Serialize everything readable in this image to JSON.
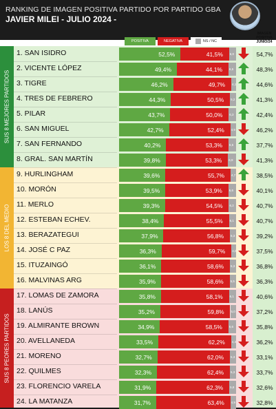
{
  "header": {
    "title": "RANKING DE IMAGEN POSITIVA PARTIDO POR PARTIDO GBA",
    "subtitle": "JAVIER MILEI - JULIO 2024 -"
  },
  "legend": {
    "positive": "POSITIVA",
    "negative": "NEGATIVA",
    "ns": "NS / NC"
  },
  "prev_column_label": "IMAGEN POSITIVA JUNIO/24",
  "groups": [
    {
      "label": "SUS 8 MEJORES PARTIDOS",
      "color": "#2c8f3c"
    },
    {
      "label": "LOS 8 DEL MEDIO",
      "color": "#f2b533"
    },
    {
      "label": "SUS 8 PEORES PARTIDOS",
      "color": "#c61f1f"
    }
  ],
  "colors": {
    "positive": "#5fa843",
    "negative": "#d51d1d",
    "ns": "#aaaaaa",
    "up_arrow": "#3aa33a",
    "down_arrow": "#d51d1d"
  },
  "chart_data": {
    "type": "bar",
    "stacked": true,
    "title": "RANKING DE IMAGEN POSITIVA PARTIDO POR PARTIDO GBA",
    "series_names": [
      "POSITIVA",
      "NEGATIVA",
      "NS / NC"
    ],
    "rows": [
      {
        "rank": "1.",
        "name": "SAN ISIDRO",
        "pos": 52.5,
        "neg": 41.5,
        "ns": 6.0,
        "pos_label": "52,5%",
        "neg_label": "41,5%",
        "ns_label": "6,0",
        "trend": "down",
        "prev": "54,7%"
      },
      {
        "rank": "2.",
        "name": "VICENTE LÓPEZ",
        "pos": 49.4,
        "neg": 44.1,
        "ns": 6.5,
        "pos_label": "49,4%",
        "neg_label": "44,1%",
        "ns_label": "6,5",
        "trend": "up",
        "prev": "48,3%"
      },
      {
        "rank": "3.",
        "name": "TIGRE",
        "pos": 46.2,
        "neg": 49.7,
        "ns": 4.1,
        "pos_label": "46,2%",
        "neg_label": "49,7%",
        "ns_label": "4,1",
        "trend": "up",
        "prev": "44,6%"
      },
      {
        "rank": "4.",
        "name": "TRES DE FEBRERO",
        "pos": 44.3,
        "neg": 50.5,
        "ns": 5.2,
        "pos_label": "44,3%",
        "neg_label": "50,5%",
        "ns_label": "5,2",
        "trend": "up",
        "prev": "41,3%"
      },
      {
        "rank": "5.",
        "name": "PILAR",
        "pos": 43.7,
        "neg": 50.0,
        "ns": 6.3,
        "pos_label": "43,7%",
        "neg_label": "50,0%",
        "ns_label": "6,3",
        "trend": "up",
        "prev": "42,4%"
      },
      {
        "rank": "6.",
        "name": "SAN MIGUEL",
        "pos": 42.7,
        "neg": 52.4,
        "ns": 4.9,
        "pos_label": "42,7%",
        "neg_label": "52,4%",
        "ns_label": "4,9",
        "trend": "down",
        "prev": "46,2%"
      },
      {
        "rank": "7.",
        "name": "SAN FERNANDO",
        "pos": 40.2,
        "neg": 53.3,
        "ns": 6.5,
        "pos_label": "40,2%",
        "neg_label": "53,3%",
        "ns_label": "6,5",
        "trend": "up",
        "prev": "37,7%"
      },
      {
        "rank": "8.",
        "name": "GRAL. SAN MARTÍN",
        "pos": 39.8,
        "neg": 53.3,
        "ns": 6.9,
        "pos_label": "39,8%",
        "neg_label": "53,3%",
        "ns_label": "6,9",
        "trend": "down",
        "prev": "41,3%"
      },
      {
        "rank": "9.",
        "name": "HURLINGHAM",
        "pos": 39.6,
        "neg": 55.7,
        "ns": 4.7,
        "pos_label": "39,6%",
        "neg_label": "55,7%",
        "ns_label": "4,7",
        "trend": "up",
        "prev": "38,5%"
      },
      {
        "rank": "10.",
        "name": "MORÓN",
        "pos": 39.5,
        "neg": 53.9,
        "ns": 6.6,
        "pos_label": "39,5%",
        "neg_label": "53,9%",
        "ns_label": "6,6",
        "trend": "down",
        "prev": "40,1%"
      },
      {
        "rank": "11.",
        "name": "MERLO",
        "pos": 39.3,
        "neg": 54.5,
        "ns": 6.2,
        "pos_label": "39,3%",
        "neg_label": "54,5%",
        "ns_label": "6,2",
        "trend": "down",
        "prev": "40,7%"
      },
      {
        "rank": "12.",
        "name": "ESTEBAN ECHEV.",
        "pos": 38.4,
        "neg": 55.5,
        "ns": 6.1,
        "pos_label": "38,4%",
        "neg_label": "55,5%",
        "ns_label": "6,1",
        "trend": "down",
        "prev": "40,7%"
      },
      {
        "rank": "13.",
        "name": "BERAZATEGUI",
        "pos": 37.9,
        "neg": 56.8,
        "ns": 5.3,
        "pos_label": "37,9%",
        "neg_label": "56,8%",
        "ns_label": "5,3",
        "trend": "down",
        "prev": "39,2%"
      },
      {
        "rank": "14.",
        "name": "JOSÉ C PAZ",
        "pos": 36.3,
        "neg": 59.7,
        "ns": 4.0,
        "pos_label": "36,3%",
        "neg_label": "59,7%",
        "ns_label": "4,0",
        "trend": "down",
        "prev": "37,5%"
      },
      {
        "rank": "15.",
        "name": "ITUZAINGÓ",
        "pos": 36.1,
        "neg": 58.6,
        "ns": 5.3,
        "pos_label": "36,1%",
        "neg_label": "58,6%",
        "ns_label": "5,3",
        "trend": "down",
        "prev": "36,8%"
      },
      {
        "rank": "16.",
        "name": "MALVINAS ARG",
        "pos": 35.9,
        "neg": 58.6,
        "ns": 5.5,
        "pos_label": "35,9%",
        "neg_label": "58,6%",
        "ns_label": "5,5",
        "trend": "down",
        "prev": "36,3%"
      },
      {
        "rank": "17.",
        "name": "LOMAS DE ZAMORA",
        "pos": 35.8,
        "neg": 58.1,
        "ns": 6.1,
        "pos_label": "35,8%",
        "neg_label": "58,1%",
        "ns_label": "6,1",
        "trend": "down",
        "prev": "40,6%"
      },
      {
        "rank": "18.",
        "name": "LANÚS",
        "pos": 35.2,
        "neg": 59.8,
        "ns": 5.0,
        "pos_label": "35,2%",
        "neg_label": "59,8%",
        "ns_label": "5,0",
        "trend": "down",
        "prev": "37,2%"
      },
      {
        "rank": "19.",
        "name": "ALMIRANTE BROWN",
        "pos": 34.9,
        "neg": 58.5,
        "ns": 6.6,
        "pos_label": "34,9%",
        "neg_label": "58,5%",
        "ns_label": "6,6",
        "trend": "down",
        "prev": "35,8%"
      },
      {
        "rank": "20.",
        "name": "AVELLANEDA",
        "pos": 33.5,
        "neg": 62.2,
        "ns": 4.3,
        "pos_label": "33,5%",
        "neg_label": "62,2%",
        "ns_label": "4,3",
        "trend": "down",
        "prev": "36,2%"
      },
      {
        "rank": "21.",
        "name": "MORENO",
        "pos": 32.7,
        "neg": 62.0,
        "ns": 5.3,
        "pos_label": "32,7%",
        "neg_label": "62,0%",
        "ns_label": "5,3",
        "trend": "down",
        "prev": "33,1%"
      },
      {
        "rank": "22.",
        "name": "QUILMES",
        "pos": 32.3,
        "neg": 62.4,
        "ns": 5.3,
        "pos_label": "32,3%",
        "neg_label": "62,4%",
        "ns_label": "5,3",
        "trend": "down",
        "prev": "33,7%"
      },
      {
        "rank": "23.",
        "name": "FLORENCIO VARELA",
        "pos": 31.9,
        "neg": 62.3,
        "ns": 5.8,
        "pos_label": "31,9%",
        "neg_label": "62,3%",
        "ns_label": "5,8",
        "trend": "down",
        "prev": "32,6%"
      },
      {
        "rank": "24.",
        "name": "LA MATANZA",
        "pos": 31.7,
        "neg": 63.4,
        "ns": 4.9,
        "pos_label": "31,7%",
        "neg_label": "63,4%",
        "ns_label": "4,9",
        "trend": "down",
        "prev": "32,8%"
      }
    ]
  }
}
